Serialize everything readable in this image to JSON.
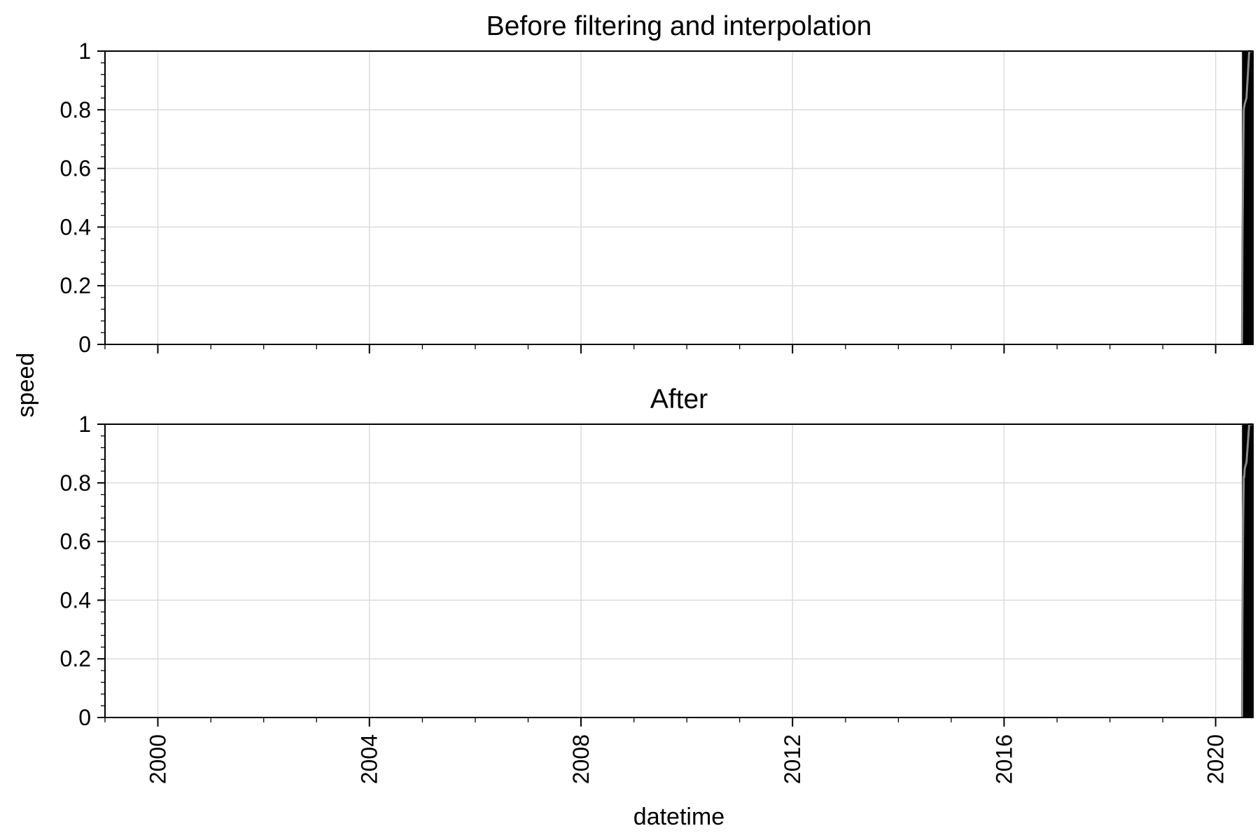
{
  "chart_data": [
    {
      "type": "line",
      "title": "Before filtering and interpolation",
      "xlabel": "",
      "ylabel": "speed",
      "xlim": [
        "1999-01-01",
        "2020-09-15"
      ],
      "ylim": [
        0,
        1
      ],
      "grid": true,
      "x_ticks": [
        "2000",
        "2004",
        "2008",
        "2012",
        "2016",
        "2020"
      ],
      "x_tick_labels_visible": false,
      "y_ticks": [
        "0",
        "0.2",
        "0.4",
        "0.6",
        "0.8",
        "1"
      ],
      "data_span": [
        "2020-07-01",
        "2020-09-10"
      ],
      "series": [
        {
          "color": "#000000",
          "x": [
            "2020-07-01",
            "2020-07-04",
            "2020-07-07",
            "2020-07-10",
            "2020-07-13",
            "2020-07-16",
            "2020-07-20",
            "2020-08-01",
            "2020-08-20",
            "2020-09-10"
          ],
          "y": [
            0.0,
            0.35,
            0.5,
            0.65,
            0.8,
            0.81,
            0.82,
            0.84,
            1.0,
            1.0
          ]
        }
      ]
    },
    {
      "type": "line",
      "title": "After",
      "xlabel": "datetime",
      "ylabel": "speed",
      "xlim": [
        "1999-01-01",
        "2020-09-15"
      ],
      "ylim": [
        0,
        1
      ],
      "grid": true,
      "x_ticks": [
        "2000",
        "2004",
        "2008",
        "2012",
        "2016",
        "2020"
      ],
      "x_tick_labels_visible": true,
      "y_ticks": [
        "0",
        "0.2",
        "0.4",
        "0.6",
        "0.8",
        "1"
      ],
      "data_span": [
        "2020-07-01",
        "2020-09-10"
      ],
      "series": [
        {
          "color": "#000000",
          "x": [
            "2020-07-01",
            "2020-07-04",
            "2020-07-07",
            "2020-07-10",
            "2020-07-13",
            "2020-07-16",
            "2020-07-20",
            "2020-08-01",
            "2020-08-20",
            "2020-09-10"
          ],
          "y": [
            0.0,
            0.35,
            0.55,
            0.7,
            0.82,
            0.82,
            0.85,
            0.87,
            1.0,
            1.0
          ]
        }
      ]
    }
  ],
  "shared": {
    "ylabel": "speed",
    "xlabel": "datetime"
  }
}
